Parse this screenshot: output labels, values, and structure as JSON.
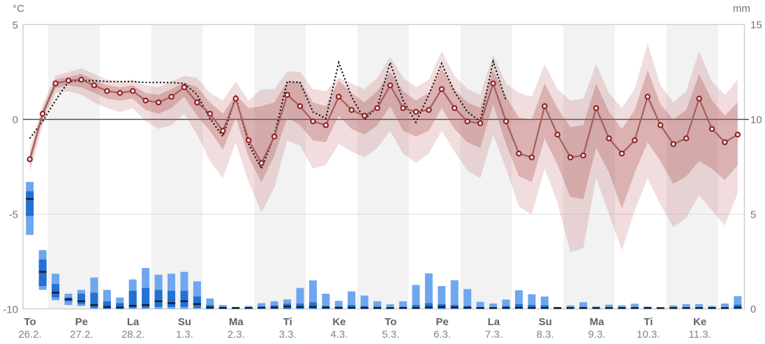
{
  "chart_data": {
    "type": "line",
    "subtype": "probability-meteogram-with-uncertainty-bands-and-precipitation-bars",
    "title": "",
    "left_axis": {
      "unit": "°C",
      "ticks": [
        5,
        0,
        -5,
        -10
      ],
      "range": [
        -10,
        5
      ]
    },
    "right_axis": {
      "unit": "mm",
      "ticks": [
        15,
        10,
        5,
        0
      ],
      "range": [
        0,
        15
      ]
    },
    "x_axis": {
      "step_hours": 6,
      "points_per_day": 4,
      "days": [
        {
          "day": "To",
          "date": "26.2."
        },
        {
          "day": "Pe",
          "date": "27.2."
        },
        {
          "day": "La",
          "date": "28.2."
        },
        {
          "day": "Su",
          "date": "1.3."
        },
        {
          "day": "Ma",
          "date": "2.3."
        },
        {
          "day": "Ti",
          "date": "3.3."
        },
        {
          "day": "Ke",
          "date": "4.3."
        },
        {
          "day": "To",
          "date": "5.3."
        },
        {
          "day": "Pe",
          "date": "6.3."
        },
        {
          "day": "La",
          "date": "7.3."
        },
        {
          "day": "Su",
          "date": "8.3."
        },
        {
          "day": "Ma",
          "date": "9.3."
        },
        {
          "day": "Ti",
          "date": "10.3."
        },
        {
          "day": "Ke",
          "date": "11.3."
        }
      ]
    },
    "temperature_c": {
      "median": [
        -2.1,
        0.3,
        1.9,
        2.05,
        2.1,
        1.8,
        1.5,
        1.4,
        1.5,
        1.0,
        0.9,
        1.2,
        1.7,
        0.9,
        0.3,
        -0.6,
        1.1,
        -1.1,
        -2.3,
        -0.9,
        1.3,
        0.7,
        -0.1,
        -0.3,
        1.2,
        0.5,
        0.2,
        0.6,
        1.8,
        0.6,
        0.4,
        0.5,
        1.6,
        0.6,
        -0.1,
        -0.2,
        1.9,
        -0.1,
        -1.8,
        -2.0,
        0.7,
        -0.8,
        -2.0,
        -1.9,
        0.6,
        -1.0,
        -1.8,
        -1.1,
        1.2,
        -0.3,
        -1.3,
        -1.0,
        1.1,
        -0.5,
        -1.2,
        -0.8
      ],
      "control": [
        -1.0,
        -0.1,
        1.0,
        2.0,
        2.05,
        2.05,
        2.0,
        2.0,
        2.0,
        1.95,
        1.95,
        1.95,
        1.9,
        1.3,
        0.05,
        -0.9,
        1.2,
        -1.3,
        -2.6,
        -0.85,
        2.0,
        1.95,
        0.4,
        0.05,
        3.0,
        1.2,
        0.0,
        0.65,
        3.0,
        1.0,
        -0.15,
        1.3,
        2.95,
        1.45,
        0.4,
        -0.1,
        3.05,
        1.0
      ],
      "band50_hi": [
        -1.9,
        0.55,
        2.1,
        2.25,
        2.4,
        2.1,
        1.8,
        1.7,
        1.8,
        1.4,
        1.3,
        1.6,
        1.95,
        1.7,
        0.9,
        0.3,
        1.3,
        0.6,
        0.7,
        0.9,
        2.0,
        2.0,
        0.9,
        0.7,
        2.05,
        1.4,
        0.9,
        1.5,
        2.5,
        1.5,
        1.0,
        1.4,
        2.7,
        1.6,
        0.9,
        0.6,
        2.6,
        1.2,
        0.1,
        0.0,
        1.9,
        0.6,
        -0.4,
        -0.3,
        1.9,
        0.4,
        -0.5,
        0.5,
        2.6,
        0.8,
        0.0,
        0.5,
        2.4,
        1.0,
        0.2,
        0.9
      ],
      "band50_lo": [
        -2.5,
        0.05,
        1.65,
        1.8,
        1.7,
        1.4,
        1.1,
        1.0,
        1.1,
        0.5,
        0.3,
        0.6,
        1.2,
        0.2,
        -0.6,
        -1.6,
        0.1,
        -2.0,
        -3.3,
        -1.9,
        0.1,
        -0.3,
        -1.1,
        -1.2,
        0.2,
        -0.5,
        -0.8,
        -0.3,
        0.7,
        -0.6,
        -0.9,
        -0.6,
        0.6,
        -0.5,
        -1.2,
        -1.5,
        0.8,
        -1.3,
        -3.0,
        -3.3,
        -1.0,
        -2.4,
        -4.1,
        -4.2,
        -1.5,
        -2.8,
        -4.7,
        -2.8,
        -1.2,
        -2.2,
        -3.4,
        -3.0,
        -2.2,
        -2.6,
        -3.2,
        -2.4
      ],
      "band90_hi": [
        -1.5,
        0.8,
        2.3,
        2.5,
        2.7,
        2.4,
        2.1,
        2.0,
        2.1,
        1.8,
        1.7,
        2.0,
        2.3,
        2.2,
        1.4,
        1.0,
        2.0,
        1.0,
        1.6,
        1.6,
        2.55,
        2.5,
        1.6,
        1.5,
        2.2,
        1.9,
        1.6,
        2.2,
        3.3,
        2.2,
        1.7,
        2.1,
        3.6,
        2.3,
        1.6,
        1.3,
        3.4,
        1.9,
        1.4,
        1.2,
        2.9,
        1.6,
        1.0,
        1.1,
        2.9,
        1.4,
        0.6,
        1.6,
        4.0,
        1.8,
        0.9,
        1.5,
        3.6,
        2.0,
        1.3,
        2.1
      ],
      "band90_lo": [
        -2.8,
        -0.3,
        1.4,
        1.5,
        1.3,
        0.9,
        0.6,
        0.4,
        0.6,
        -0.1,
        -0.5,
        -0.3,
        0.3,
        -0.8,
        -2.2,
        -3.1,
        -1.2,
        -3.3,
        -4.9,
        -3.6,
        -1.1,
        -1.4,
        -2.6,
        -2.4,
        -1.3,
        -1.7,
        -2.0,
        -1.5,
        -0.6,
        -1.8,
        -2.3,
        -1.8,
        -0.6,
        -1.7,
        -2.7,
        -3.1,
        -0.8,
        -2.6,
        -4.6,
        -5.0,
        -2.6,
        -4.4,
        -7.0,
        -6.8,
        -3.1,
        -5.0,
        -6.9,
        -4.8,
        -3.1,
        -4.5,
        -5.7,
        -5.2,
        -4.0,
        -4.8,
        -5.6,
        -3.9
      ]
    },
    "precipitation_mm": {
      "hi90": [
        6.7,
        3.1,
        1.85,
        0.8,
        1.0,
        1.65,
        1.0,
        0.6,
        1.55,
        2.15,
        1.8,
        1.85,
        1.95,
        1.45,
        0.55,
        0.2,
        0.1,
        0.15,
        0.3,
        0.4,
        0.5,
        1.1,
        1.5,
        0.8,
        0.42,
        0.92,
        0.7,
        0.4,
        0.24,
        0.4,
        1.26,
        1.87,
        1.2,
        1.51,
        1.04,
        0.37,
        0.28,
        0.49,
        0.98,
        0.77,
        0.65,
        0.1,
        0.18,
        0.35,
        0.12,
        0.22,
        0.18,
        0.27,
        0.12,
        0.05,
        0.18,
        0.25,
        0.25,
        0.15,
        0.28,
        0.67
      ],
      "hi50": [
        6.2,
        2.6,
        1.3,
        0.6,
        0.8,
        0.85,
        0.4,
        0.3,
        0.95,
        1.1,
        1.0,
        0.95,
        0.95,
        0.65,
        0.2,
        0.1,
        0.05,
        0.07,
        0.12,
        0.18,
        0.27,
        0.28,
        0.34,
        0.15,
        0.12,
        0.2,
        0.15,
        0.12,
        0.07,
        0.1,
        0.2,
        0.3,
        0.25,
        0.2,
        0.15,
        0.1,
        0.08,
        0.15,
        0.25,
        0.2,
        0.18,
        0.04,
        0.06,
        0.1,
        0.04,
        0.07,
        0.06,
        0.08,
        0.04,
        0.02,
        0.06,
        0.08,
        0.08,
        0.05,
        0.08,
        0.22
      ],
      "median": [
        5.8,
        1.95,
        0.85,
        0.5,
        0.4,
        0.2,
        0.1,
        0.07,
        0.16,
        0.2,
        0.4,
        0.3,
        0.4,
        0.25,
        0.07,
        0.05,
        0.02,
        0.04,
        0.06,
        0.07,
        0.12,
        0.1,
        0.1,
        0.07,
        0.05,
        0.06,
        0.05,
        0.04,
        0.03,
        0.05,
        0.05,
        0.08,
        0.1,
        0.08,
        0.06,
        0.04,
        0.04,
        0.05,
        0.06,
        0.05,
        0.05,
        0.01,
        0.02,
        0.03,
        0.01,
        0.02,
        0.02,
        0.02,
        0.01,
        0.01,
        0.02,
        0.02,
        0.02,
        0.01,
        0.02,
        0.07
      ],
      "lo50": [
        4.9,
        1.2,
        0.6,
        0.4,
        0.25,
        0.05,
        0,
        0,
        0.05,
        0.05,
        0.1,
        0.1,
        0.1,
        0.05,
        0,
        0,
        0,
        0,
        0,
        0,
        0,
        0,
        0,
        0,
        0,
        0,
        0,
        0,
        0,
        0,
        0,
        0,
        0,
        0,
        0,
        0,
        0,
        0,
        0,
        0,
        0,
        0,
        0,
        0,
        0,
        0,
        0,
        0,
        0,
        0,
        0,
        0,
        0,
        0,
        0,
        0
      ],
      "lo90": [
        3.9,
        1.0,
        0.45,
        0.2,
        0.15,
        0,
        0,
        0,
        0,
        0,
        0,
        0,
        0,
        0,
        0,
        0,
        0,
        0,
        0,
        0,
        0,
        0,
        0,
        0,
        0,
        0,
        0,
        0,
        0,
        0,
        0,
        0,
        0,
        0,
        0,
        0,
        0,
        0,
        0,
        0,
        0,
        0,
        0,
        0,
        0,
        0,
        0,
        0,
        0,
        0,
        0,
        0,
        0,
        0,
        0,
        0
      ]
    },
    "colors": {
      "background": "#ffffff",
      "day_band_gray": "#f2f2f2",
      "plot_border": "#cccccc",
      "gridline": "#e2e2e2",
      "zero_line": "#444444",
      "tick_text": "#757575",
      "day_text": "#5f6368",
      "date_text": "#80868b",
      "temp_median_line": "#a65d5d",
      "temp_marker_stroke": "#8e1b1b",
      "temp_marker_fill": "#f2e4e4",
      "temp_control_line": "#141414",
      "band_outer": "#bb5f5f",
      "band_outer_alpha": 0.21,
      "band_inner": "#aa4b4b",
      "band_inner_alpha": 0.3,
      "precip_light_blue": "#6ea7ee",
      "precip_dark_blue": "#2271d3",
      "precip_median_tick": "#1c1c1c"
    },
    "legend_position": "none",
    "grid": "horizontal-light"
  }
}
